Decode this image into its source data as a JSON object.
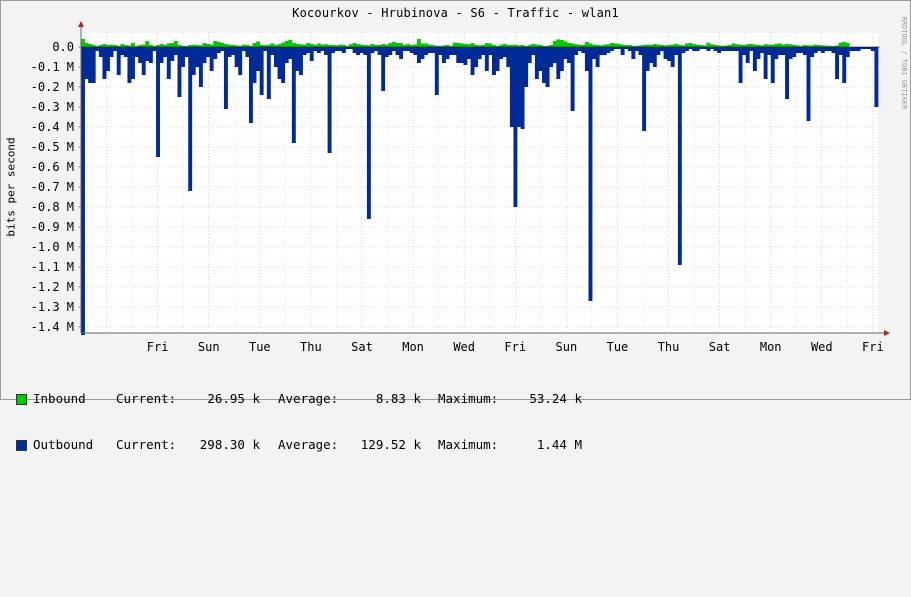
{
  "chart_data": {
    "type": "area",
    "title": "Kocourkov - Hrubinova - S6 - Traffic - wlan1",
    "ylabel": "bits per second",
    "ylim": [
      -1400000,
      50000
    ],
    "y_ticks": [
      {
        "value": 0,
        "label": "0.0"
      },
      {
        "value": -100000,
        "label": "-0.1 M"
      },
      {
        "value": -200000,
        "label": "-0.2 M"
      },
      {
        "value": -300000,
        "label": "-0.3 M"
      },
      {
        "value": -400000,
        "label": "-0.4 M"
      },
      {
        "value": -500000,
        "label": "-0.5 M"
      },
      {
        "value": -600000,
        "label": "-0.6 M"
      },
      {
        "value": -700000,
        "label": "-0.7 M"
      },
      {
        "value": -800000,
        "label": "-0.8 M"
      },
      {
        "value": -900000,
        "label": "-0.9 M"
      },
      {
        "value": -1000000,
        "label": "-1.0 M"
      },
      {
        "value": -1100000,
        "label": "-1.1 M"
      },
      {
        "value": -1200000,
        "label": "-1.2 M"
      },
      {
        "value": -1300000,
        "label": "-1.3 M"
      },
      {
        "value": -1400000,
        "label": "-1.4 M"
      }
    ],
    "x_range_days": [
      0,
      15.6
    ],
    "x_ticks": [
      {
        "day": 1,
        "label": "Fri"
      },
      {
        "day": 2,
        "label": "Sun"
      },
      {
        "day": 3,
        "label": "Tue"
      },
      {
        "day": 4,
        "label": "Thu"
      },
      {
        "day": 5,
        "label": "Sat"
      },
      {
        "day": 6,
        "label": "Mon"
      },
      {
        "day": 7,
        "label": "Wed"
      },
      {
        "day": 8,
        "label": "Fri"
      },
      {
        "day": 9,
        "label": "Sun"
      },
      {
        "day": 10,
        "label": "Tue"
      },
      {
        "day": 11,
        "label": "Thu"
      },
      {
        "day": 12,
        "label": "Sat"
      },
      {
        "day": 13,
        "label": "Mon"
      },
      {
        "day": 14,
        "label": "Wed"
      },
      {
        "day": 15,
        "label": "Fri"
      }
    ],
    "grid": true,
    "legend_position": "bottom-left",
    "series": [
      {
        "name": "Inbound",
        "color": "#00cc00",
        "values": [
          0.04,
          0.02,
          0.015,
          0.01,
          0.005,
          0.01,
          0.015,
          0.01,
          0.012,
          0.01,
          0.005,
          0.015,
          0.01,
          0.008,
          0.02,
          0.005,
          0.01,
          0.012,
          0.03,
          0.01,
          0.005,
          0.01,
          0.015,
          0.01,
          0.018,
          0.02,
          0.03,
          0.01,
          0.006,
          0.005,
          0.01,
          0.012,
          0.01,
          0.008,
          0.02,
          0.015,
          0.012,
          0.03,
          0.025,
          0.02,
          0.015,
          0.012,
          0.01,
          0.008,
          0.006,
          0.012,
          0.01,
          0.006,
          0.02,
          0.028,
          0.01,
          0.009,
          0.012,
          0.018,
          0.01,
          0.014,
          0.022,
          0.03,
          0.036,
          0.02,
          0.016,
          0.014,
          0.012,
          0.02,
          0.016,
          0.01,
          0.018,
          0.012,
          0.014,
          0.01,
          0.01,
          0.008,
          0.012,
          0.01,
          0.005,
          0.014,
          0.02,
          0.014,
          0.012,
          0.01,
          0.008,
          0.016,
          0.01,
          0.01,
          0.015,
          0.012,
          0.02,
          0.026,
          0.02,
          0.02,
          0.01,
          0.016,
          0.01,
          0.012,
          0.04,
          0.018,
          0.018,
          0.012,
          0.01,
          0.006,
          0.006,
          0.008,
          0.01,
          0.005,
          0.022,
          0.02,
          0.018,
          0.016,
          0.014,
          0.02,
          0.01,
          0.008,
          0.01,
          0.02,
          0.018,
          0.01,
          0.005,
          0.012,
          0.016,
          0.01,
          0.01,
          0.012,
          0.008,
          0.01,
          0.005,
          0.01,
          0.016,
          0.012,
          0.01,
          0.005,
          0.006,
          0.01,
          0.03,
          0.038,
          0.035,
          0.028,
          0.02,
          0.018,
          0.014,
          0.012,
          0.01,
          0.025,
          0.018,
          0.012,
          0.01,
          0.008,
          0.012,
          0.014,
          0.02,
          0.018,
          0.016,
          0.012,
          0.01,
          0.01,
          0.005,
          0.006,
          0.008,
          0.01,
          0.012,
          0.01,
          0.015,
          0.012,
          0.01,
          0.008,
          0.01,
          0.012,
          0.016,
          0.01,
          0.008,
          0.018,
          0.02,
          0.014,
          0.012,
          0.01,
          0.008,
          0.022,
          0.014,
          0.01,
          0.008,
          0.006,
          0.008,
          0.01,
          0.018,
          0.014,
          0.012,
          0.01,
          0.014,
          0.016,
          0.012,
          0.01,
          0.008,
          0.014,
          0.012,
          0.01,
          0.016,
          0.018,
          0.012,
          0.016,
          0.014,
          0.01,
          0.008,
          0.006,
          0.01,
          0.008,
          0.008,
          0.012,
          0.01,
          0.008,
          0.007,
          0.006,
          0.005,
          0.008,
          0.022,
          0.026,
          0.02
        ]
      },
      {
        "name": "Outbound",
        "color": "#002a97",
        "values": [
          -1.44,
          -0.16,
          -0.18,
          -0.18,
          -0.02,
          -0.05,
          -0.16,
          -0.12,
          -0.05,
          -0.02,
          -0.14,
          -0.04,
          -0.05,
          -0.18,
          -0.16,
          -0.05,
          -0.08,
          -0.14,
          -0.07,
          -0.08,
          -0.02,
          -0.55,
          -0.08,
          -0.05,
          -0.16,
          -0.07,
          -0.04,
          -0.25,
          -0.1,
          -0.05,
          -0.72,
          -0.14,
          -0.1,
          -0.2,
          -0.08,
          -0.05,
          -0.12,
          -0.06,
          -0.03,
          -0.02,
          -0.31,
          -0.05,
          -0.04,
          -0.1,
          -0.14,
          -0.02,
          -0.05,
          -0.38,
          -0.18,
          -0.12,
          -0.24,
          -0.02,
          -0.26,
          -0.04,
          -0.1,
          -0.16,
          -0.18,
          -0.08,
          -0.06,
          -0.48,
          -0.12,
          -0.14,
          -0.04,
          -0.03,
          -0.07,
          -0.02,
          -0.03,
          -0.02,
          -0.04,
          -0.53,
          -0.03,
          -0.02,
          -0.02,
          -0.03,
          -0.01,
          -0.01,
          -0.03,
          -0.04,
          -0.03,
          -0.04,
          -0.86,
          -0.03,
          -0.02,
          -0.04,
          -0.22,
          -0.05,
          -0.04,
          -0.02,
          -0.04,
          -0.06,
          -0.02,
          -0.02,
          -0.03,
          -0.04,
          -0.08,
          -0.06,
          -0.04,
          -0.03,
          -0.03,
          -0.24,
          -0.04,
          -0.08,
          -0.06,
          -0.04,
          -0.04,
          -0.08,
          -0.08,
          -0.09,
          -0.06,
          -0.14,
          -0.1,
          -0.06,
          -0.04,
          -0.12,
          -0.04,
          -0.14,
          -0.12,
          -0.06,
          -0.05,
          -0.1,
          -0.4,
          -0.8,
          -0.4,
          -0.41,
          -0.2,
          -0.08,
          -0.04,
          -0.16,
          -0.12,
          -0.18,
          -0.2,
          -0.1,
          -0.08,
          -0.16,
          -0.12,
          -0.06,
          -0.08,
          -0.32,
          -0.04,
          -0.02,
          -0.03,
          -0.12,
          -1.27,
          -0.06,
          -0.1,
          -0.04,
          -0.04,
          -0.03,
          -0.02,
          -0.01,
          -0.01,
          -0.04,
          -0.01,
          -0.02,
          -0.06,
          -0.02,
          -0.04,
          -0.42,
          -0.12,
          -0.08,
          -0.1,
          -0.04,
          -0.02,
          -0.06,
          -0.07,
          -0.1,
          -0.04,
          -1.09,
          -0.03,
          -0.02,
          -0.01,
          -0.02,
          -0.02,
          -0.01,
          -0.01,
          -0.02,
          -0.01,
          -0.02,
          -0.03,
          -0.02,
          -0.02,
          -0.02,
          -0.02,
          -0.02,
          -0.18,
          -0.04,
          -0.08,
          -0.02,
          -0.12,
          -0.06,
          -0.03,
          -0.16,
          -0.04,
          -0.18,
          -0.06,
          -0.04,
          -0.04,
          -0.26,
          -0.06,
          -0.05,
          -0.03,
          -0.03,
          -0.04,
          -0.37,
          -0.05,
          -0.03,
          -0.02,
          -0.03,
          -0.02,
          -0.02,
          -0.03,
          -0.16,
          -0.04,
          -0.18,
          -0.05,
          -0.02,
          -0.02,
          -0.02,
          -0.01,
          -0.01,
          -0.01,
          -0.02,
          -0.3
        ]
      }
    ]
  },
  "legend": [
    {
      "name": "Inbound",
      "color": "#00cc00",
      "current_label": "Current:",
      "current": "26.95 k",
      "average_label": "Average:",
      "average": "8.83 k",
      "maximum_label": "Maximum:",
      "maximum": "53.24 k"
    },
    {
      "name": "Outbound",
      "color": "#002a97",
      "current_label": "Current:",
      "current": "298.30 k",
      "average_label": "Average:",
      "average": "129.52 k",
      "maximum_label": "Maximum:",
      "maximum": "1.44 M"
    }
  ],
  "watermark": "RRDTOOL / TOBI OETIKER"
}
